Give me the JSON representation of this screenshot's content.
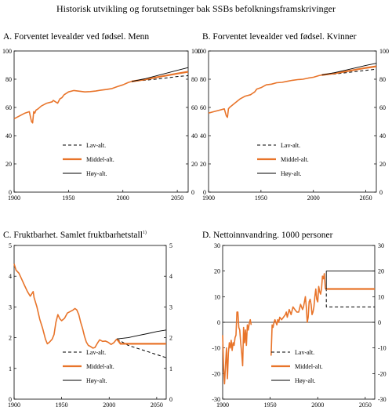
{
  "figure_title": "Historisk utvikling og forutsetninger bak SSBs befolkningsframskrivinger",
  "legend": {
    "low": "Lav-alt.",
    "mid": "Middel-alt.",
    "high": "Høy-alt."
  },
  "colors": {
    "historical": "#e8742a",
    "mid": "#e8742a",
    "low": "#000000",
    "high": "#000000"
  },
  "chart_data": [
    {
      "id": "A",
      "type": "line",
      "title": "A. Forventet levealder ved fødsel. Menn",
      "title_sup": "",
      "xlim": [
        1900,
        2060
      ],
      "ylim": [
        0,
        100
      ],
      "xticks": [
        1900,
        1950,
        2000,
        2050
      ],
      "yticks": [
        0,
        20,
        40,
        60,
        80,
        100
      ],
      "legend_position": "lower-middle",
      "historical": {
        "x": [
          1900,
          1905,
          1910,
          1914,
          1916,
          1917,
          1918,
          1919,
          1920,
          1922,
          1925,
          1930,
          1935,
          1936,
          1938,
          1940,
          1942,
          1944,
          1946,
          1950,
          1955,
          1960,
          1965,
          1970,
          1975,
          1980,
          1985,
          1990,
          1995,
          2000,
          2005,
          2008
        ],
        "y": [
          52,
          54,
          56,
          57,
          50,
          49,
          57,
          56,
          58,
          59,
          61,
          63,
          64,
          65,
          64,
          63,
          66,
          67,
          69,
          71,
          72,
          71.5,
          71,
          71.2,
          71.6,
          72.3,
          72.7,
          73.4,
          74.8,
          76,
          77.7,
          78.4
        ]
      },
      "series": [
        {
          "name": "Lav-alt.",
          "x": [
            2008,
            2020,
            2030,
            2040,
            2050,
            2060
          ],
          "y": [
            78.4,
            79.2,
            80,
            80.9,
            81.9,
            82.5
          ]
        },
        {
          "name": "Middel-alt.",
          "x": [
            2008,
            2020,
            2030,
            2040,
            2050,
            2060
          ],
          "y": [
            78.4,
            79.8,
            81.2,
            82.6,
            84,
            85.3
          ]
        },
        {
          "name": "Høy-alt.",
          "x": [
            2008,
            2020,
            2030,
            2040,
            2050,
            2060
          ],
          "y": [
            78.4,
            80.3,
            82.3,
            84.3,
            86.3,
            88.2
          ]
        }
      ]
    },
    {
      "id": "B",
      "type": "line",
      "title": "B. Forventet levealder ved fødsel. Kvinner",
      "title_sup": "",
      "xlim": [
        1900,
        2060
      ],
      "ylim": [
        0,
        100
      ],
      "xticks": [
        1900,
        1950,
        2000,
        2050
      ],
      "yticks": [
        0,
        20,
        40,
        60,
        80,
        100
      ],
      "legend_position": "lower-middle",
      "historical": {
        "x": [
          1900,
          1905,
          1910,
          1915,
          1917,
          1918,
          1919,
          1920,
          1925,
          1930,
          1935,
          1940,
          1942,
          1944,
          1946,
          1950,
          1955,
          1960,
          1965,
          1970,
          1975,
          1980,
          1985,
          1990,
          1995,
          2000,
          2005,
          2008
        ],
        "y": [
          56,
          57,
          58,
          59,
          54,
          53,
          59,
          60,
          63,
          66,
          68,
          69,
          70,
          71,
          73,
          74,
          76,
          76.5,
          77.5,
          77.8,
          78.5,
          79.2,
          79.7,
          80,
          80.8,
          81.4,
          82.5,
          83
        ]
      },
      "series": [
        {
          "name": "Lav-alt.",
          "x": [
            2008,
            2020,
            2030,
            2040,
            2050,
            2060
          ],
          "y": [
            83,
            83.6,
            84.5,
            85.4,
            86.3,
            87.1
          ]
        },
        {
          "name": "Middel-alt.",
          "x": [
            2008,
            2020,
            2030,
            2040,
            2050,
            2060
          ],
          "y": [
            83,
            84.1,
            85.4,
            86.7,
            88,
            89.1
          ]
        },
        {
          "name": "Høy-alt.",
          "x": [
            2008,
            2020,
            2030,
            2040,
            2050,
            2060
          ],
          "y": [
            83,
            84.6,
            86.3,
            88,
            89.8,
            91.3
          ]
        }
      ]
    },
    {
      "id": "C",
      "type": "line",
      "title": "C. Fruktbarhet. Samlet fruktbarhetstall",
      "title_sup": "1)",
      "xlim": [
        1900,
        2060
      ],
      "ylim": [
        0,
        5
      ],
      "xticks": [
        1900,
        1950,
        2000,
        2050
      ],
      "yticks": [
        0,
        1,
        2,
        3,
        4,
        5
      ],
      "legend_position": "lower-middle",
      "historical": {
        "x": [
          1900,
          1902,
          1905,
          1908,
          1911,
          1914,
          1917,
          1920,
          1921,
          1924,
          1927,
          1930,
          1933,
          1935,
          1937,
          1940,
          1942,
          1944,
          1946,
          1948,
          1950,
          1953,
          1956,
          1959,
          1962,
          1964,
          1966,
          1968,
          1970,
          1972,
          1974,
          1976,
          1978,
          1980,
          1983,
          1985,
          1988,
          1990,
          1993,
          1996,
          1999,
          2002,
          2005,
          2008
        ],
        "y": [
          4.4,
          4.2,
          4.1,
          3.9,
          3.7,
          3.5,
          3.35,
          3.5,
          3.3,
          3.0,
          2.6,
          2.3,
          1.95,
          1.8,
          1.85,
          1.95,
          2.1,
          2.5,
          2.75,
          2.62,
          2.55,
          2.63,
          2.8,
          2.85,
          2.9,
          2.95,
          2.9,
          2.75,
          2.5,
          2.3,
          2.05,
          1.86,
          1.75,
          1.72,
          1.66,
          1.68,
          1.84,
          1.93,
          1.88,
          1.89,
          1.85,
          1.78,
          1.84,
          1.96
        ]
      },
      "series": [
        {
          "name": "Lav-alt.",
          "x": [
            2008,
            2020,
            2030,
            2040,
            2050,
            2060
          ],
          "y": [
            1.96,
            1.75,
            1.65,
            1.55,
            1.45,
            1.35
          ]
        },
        {
          "name": "Middel-alt.",
          "x": [
            2008,
            2012,
            2020,
            2030,
            2040,
            2050,
            2060
          ],
          "y": [
            1.96,
            1.8,
            1.8,
            1.8,
            1.8,
            1.8,
            1.8
          ]
        },
        {
          "name": "Høy-alt.",
          "x": [
            2008,
            2020,
            2030,
            2040,
            2050,
            2060
          ],
          "y": [
            1.96,
            2.0,
            2.07,
            2.13,
            2.2,
            2.25
          ]
        }
      ]
    },
    {
      "id": "D",
      "type": "line",
      "title": "D. Nettoinnvandring. 1000  personer",
      "title_sup": "",
      "xlim": [
        1900,
        2060
      ],
      "ylim": [
        -30,
        30
      ],
      "xticks": [
        1900,
        1950,
        2000,
        2050
      ],
      "yticks": [
        -30,
        -20,
        -10,
        0,
        10,
        20,
        30
      ],
      "legend_position": "lower-middle",
      "historical_segments": [
        {
          "x": [
            1900,
            1901,
            1902,
            1903,
            1904,
            1905,
            1906,
            1907,
            1908,
            1909,
            1910,
            1911,
            1912,
            1913,
            1914,
            1915,
            1916,
            1917,
            1918,
            1919,
            1920,
            1921,
            1922,
            1923,
            1924,
            1925,
            1926,
            1927,
            1928,
            1929,
            1930
          ],
          "y": [
            -5,
            -18,
            -24,
            -17,
            -10,
            -22,
            -12,
            -8,
            -10,
            -7,
            -11,
            -8,
            -9,
            -6,
            -5,
            4,
            4,
            -2,
            -3,
            -8,
            -12,
            -17,
            -2,
            -8,
            -3,
            -9,
            -1,
            -3,
            -0.5,
            1,
            -1
          ]
        },
        {
          "x": [
            1951,
            1952,
            1953,
            1954,
            1955,
            1956,
            1957,
            1958,
            1959,
            1960,
            1962,
            1964,
            1966,
            1967,
            1968,
            1970,
            1972,
            1974,
            1976,
            1978,
            1980,
            1982,
            1984,
            1985,
            1986,
            1987,
            1988,
            1989,
            1990,
            1991,
            1992,
            1993,
            1994,
            1995,
            1996,
            1997,
            1998,
            1999,
            2000,
            2001,
            2002,
            2003,
            2004,
            2005,
            2006,
            2007,
            2008
          ],
          "y": [
            -13,
            -1,
            -2,
            0,
            1,
            0,
            -1,
            1,
            0,
            2,
            1,
            2,
            3,
            4,
            2,
            5,
            3,
            6,
            5,
            4,
            4,
            7,
            5,
            6,
            8,
            10,
            6,
            0,
            2,
            8,
            9,
            7,
            3,
            4,
            6,
            10,
            13,
            9,
            8,
            14,
            12,
            11,
            13,
            18,
            17,
            19,
            13
          ]
        }
      ],
      "series": [
        {
          "name": "Lav-alt.",
          "x": [
            2008,
            2009,
            2009.01,
            2060
          ],
          "y": [
            13,
            13,
            6,
            6
          ]
        },
        {
          "name": "Middel-alt.",
          "x": [
            2008,
            2060
          ],
          "y": [
            13,
            13
          ]
        },
        {
          "name": "Høy-alt.",
          "x": [
            2008,
            2009,
            2009.01,
            2060
          ],
          "y": [
            13,
            13,
            20,
            20
          ]
        }
      ]
    }
  ]
}
